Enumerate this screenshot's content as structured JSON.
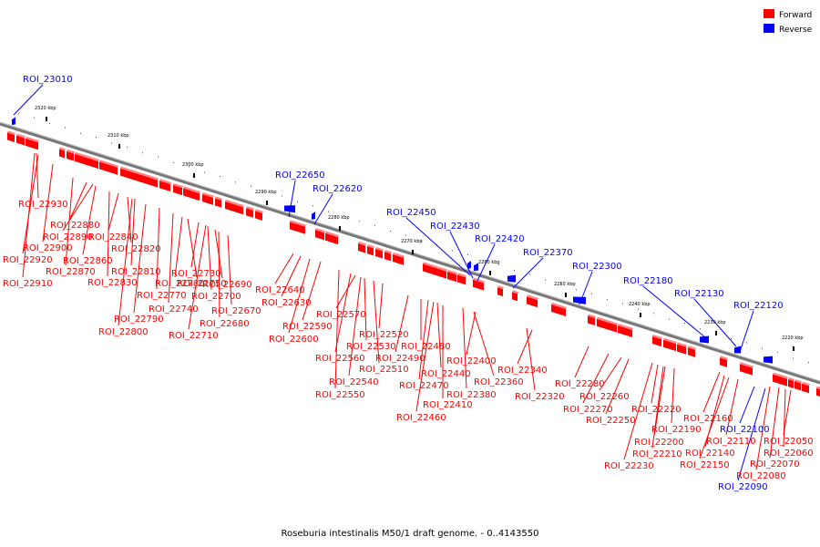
{
  "legend": {
    "forward": {
      "label": "Forward",
      "color": "#ff0000"
    },
    "reverse": {
      "label": "Reverse",
      "color": "#0000ff"
    }
  },
  "caption": "Roseburia intestinalis M50/1 draft genome. - 0..4143550",
  "ticks": [
    "2320 kbp",
    "2310 kbp",
    "2300 kbp",
    "2290 kbp",
    "2280 kbp",
    "2270 kbp",
    "2260 kbp",
    "2250 kbp",
    "2240 kbp",
    "2230 kbp",
    "2220 kbp"
  ],
  "forward_labels": [
    "ROI_22930",
    "ROI_22880",
    "ROI_22890",
    "ROI_22840",
    "ROI_22900",
    "ROI_22920",
    "ROI_22860",
    "ROI_22820",
    "ROI_22870",
    "ROI_22810",
    "ROI_22910",
    "ROI_22830",
    "ROI_22780",
    "ROI_22730",
    "ROI_22750",
    "ROI_22690",
    "ROI_22770",
    "ROI_22700",
    "ROI_22740",
    "ROI_22670",
    "ROI_22790",
    "ROI_22680",
    "ROI_22800",
    "ROI_22710",
    "ROI_22640",
    "ROI_22630",
    "ROI_22590",
    "ROI_22600",
    "ROI_22570",
    "ROI_22520",
    "ROI_22530",
    "ROI_22480",
    "ROI_22560",
    "ROI_22490",
    "ROI_22510",
    "ROI_22540",
    "ROI_22550",
    "ROI_22400",
    "ROI_22440",
    "ROI_22470",
    "ROI_22380",
    "ROI_22360",
    "ROI_22340",
    "ROI_22410",
    "ROI_22460",
    "ROI_22320",
    "ROI_22280",
    "ROI_22260",
    "ROI_22270",
    "ROI_22250",
    "ROI_22220",
    "ROI_22160",
    "ROI_22190",
    "ROI_22110",
    "ROI_22200",
    "ROI_22140",
    "ROI_22210",
    "ROI_22150",
    "ROI_22230",
    "ROI_22050",
    "ROI_22060",
    "ROI_22070",
    "ROI_22080"
  ],
  "reverse_labels": [
    "ROI_23010",
    "ROI_22650",
    "ROI_22620",
    "ROI_22450",
    "ROI_22430",
    "ROI_22420",
    "ROI_22370",
    "ROI_22300",
    "ROI_22180",
    "ROI_22130",
    "ROI_22120",
    "ROI_22100",
    "ROI_22090"
  ]
}
